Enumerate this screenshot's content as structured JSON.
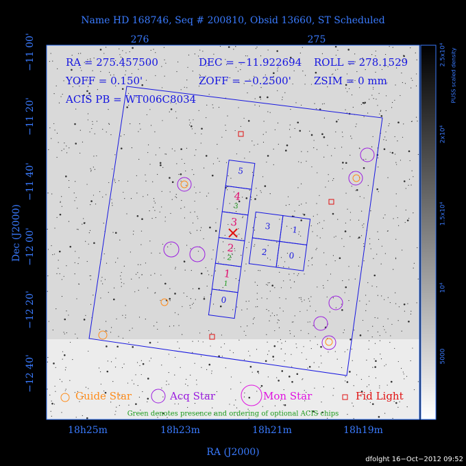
{
  "header": {
    "title": "Name HD 168746, Seq # 200810, Obsid 13660, ST Scheduled"
  },
  "axes": {
    "top_ticks": [
      "276",
      "275"
    ],
    "left_ticks": [
      "−11 00'",
      "−11 20'",
      "−11 40'",
      "−12 00'",
      "−12 20'",
      "−12 40'"
    ],
    "left_label": "Dec (J2000)",
    "bottom_ticks": [
      "18h25m",
      "18h23m",
      "18h21m",
      "18h19m"
    ],
    "bottom_label": "RA (J2000)"
  },
  "colorbar": {
    "ticks": [
      "2.5x10⁴",
      "2x10⁴",
      "1.5x10⁴",
      "10⁴",
      "5000"
    ],
    "label": "PUSS scaled density"
  },
  "info": {
    "ra": "RA = 275.457500",
    "dec": "DEC = −11.922694",
    "roll": "ROLL = 278.1529",
    "yoff": "YOFF = 0.150'",
    "zoff": "ZOFF = −0.2500'",
    "zsim": "ZSIM = 0 mm",
    "acis": "ACIS PB = WT006C8034"
  },
  "chips": {
    "column": [
      "5",
      "4",
      "3",
      "2",
      "1",
      "0"
    ],
    "optional": [
      "3",
      "2",
      "1"
    ],
    "block": [
      "3",
      "1",
      "2",
      "0"
    ]
  },
  "legend": {
    "guide": "Guide Star",
    "acq": "Acq Star",
    "mon": "Mon Star",
    "fid": "Fid Light",
    "note": "Green denotes presence and ordering of optional ACIS chips"
  },
  "footer": {
    "timestamp": "dfolght 16−Oct−2012 09:52"
  }
}
